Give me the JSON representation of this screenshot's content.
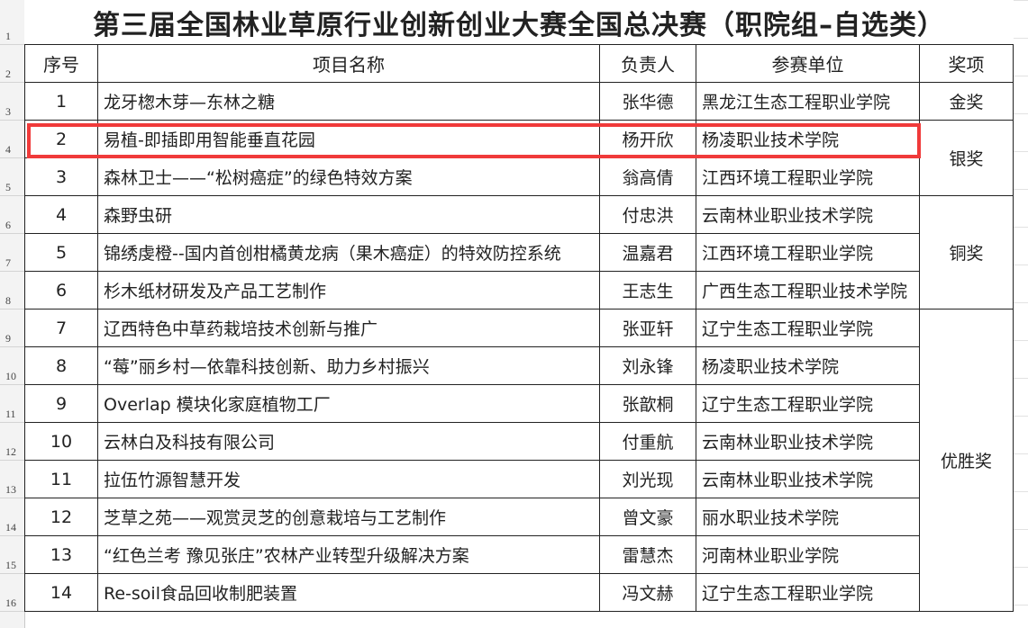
{
  "title": "第三届全国林业草原行业创新创业大赛全国总决赛（职院组–自选类）",
  "headers": {
    "seq": "序号",
    "project": "项目名称",
    "leader": "负责人",
    "unit": "参赛单位",
    "award": "奖项"
  },
  "row_numbers": [
    "1",
    "2",
    "3",
    "4",
    "5",
    "6",
    "7",
    "8",
    "9",
    "10",
    "11",
    "12",
    "13",
    "14",
    "15",
    "16"
  ],
  "rows": [
    {
      "seq": "1",
      "project": "龙牙楤木芽—东林之糖",
      "leader": "张华德",
      "unit": "黑龙江生态工程职业学院"
    },
    {
      "seq": "2",
      "project": "易植-即插即用智能垂直花园",
      "leader": "杨开欣",
      "unit": "杨凌职业技术学院"
    },
    {
      "seq": "3",
      "project": "森林卫士——“松树癌症”的绿色特效方案",
      "leader": "翁高倩",
      "unit": "江西环境工程职业学院"
    },
    {
      "seq": "4",
      "project": "森野虫研",
      "leader": "付忠洪",
      "unit": "云南林业职业技术学院"
    },
    {
      "seq": "5",
      "project": "锦绣虔橙--国内首创柑橘黄龙病（果木癌症）的特效防控系统",
      "leader": "温嘉君",
      "unit": "江西环境工程职业学院"
    },
    {
      "seq": "6",
      "project": "杉木纸材研发及产品工艺制作",
      "leader": "王志生",
      "unit": "广西生态工程职业技术学院"
    },
    {
      "seq": "7",
      "project": "辽西特色中草药栽培技术创新与推广",
      "leader": "张亚轩",
      "unit": "辽宁生态工程职业学院"
    },
    {
      "seq": "8",
      "project": "“莓”丽乡村—依靠科技创新、助力乡村振兴",
      "leader": "刘永锋",
      "unit": "杨凌职业技术学院"
    },
    {
      "seq": "9",
      "project": "Overlap 模块化家庭植物工厂",
      "leader": "张歆桐",
      "unit": "辽宁生态工程职业学院"
    },
    {
      "seq": "10",
      "project": "云林白及科技有限公司",
      "leader": "付重航",
      "unit": "云南林业职业技术学院"
    },
    {
      "seq": "11",
      "project": "拉伍竹源智慧开发",
      "leader": "刘光现",
      "unit": "云南林业职业技术学院"
    },
    {
      "seq": "12",
      "project": "芝草之苑——观赏灵芝的创意栽培与工艺制作",
      "leader": "曾文豪",
      "unit": "丽水职业技术学院"
    },
    {
      "seq": "13",
      "project": "“红色兰考 豫见张庄”农林产业转型升级解决方案",
      "leader": "雷慧杰",
      "unit": "河南林业职业学院"
    },
    {
      "seq": "14",
      "project": "Re-soil食品回收制肥装置",
      "leader": "冯文赫",
      "unit": "辽宁生态工程职业学院"
    }
  ],
  "awards": [
    {
      "label": "金奖",
      "span": 1
    },
    {
      "label": "银奖",
      "span": 2
    },
    {
      "label": "铜奖",
      "span": 3
    },
    {
      "label": "优胜奖",
      "span": 8
    }
  ],
  "highlight_color": "#f03a3a"
}
